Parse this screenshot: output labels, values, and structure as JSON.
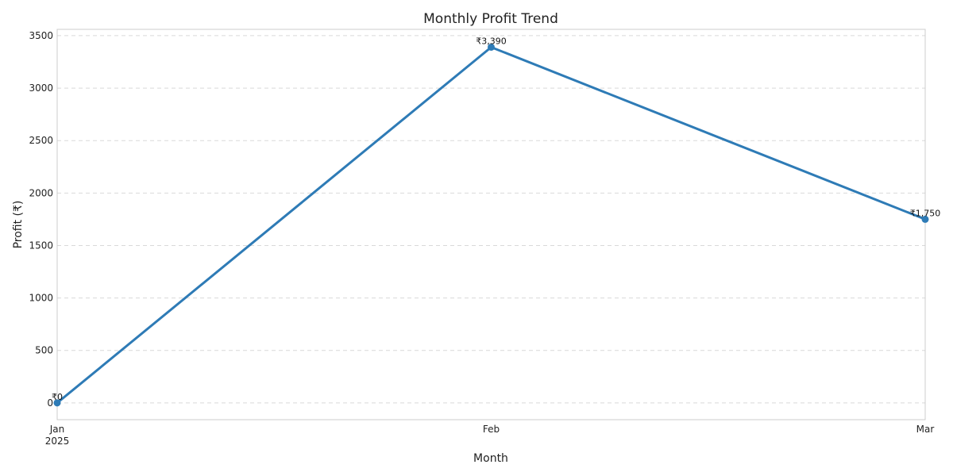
{
  "chart_data": {
    "type": "line",
    "title": "Monthly Profit Trend",
    "xlabel": "Month",
    "ylabel": "Profit (₹)",
    "categories": [
      "Jan",
      "Feb",
      "Mar"
    ],
    "year_label": "2025",
    "series": [
      {
        "values": [
          0,
          3390,
          1750
        ],
        "color": "#2e7bb6"
      }
    ],
    "data_labels": [
      "₹0",
      "₹3,390",
      "₹1,750"
    ],
    "yticks": [
      0,
      500,
      1000,
      1500,
      2000,
      2500,
      3000,
      3500
    ],
    "ylim": [
      -160,
      3560
    ],
    "grid": true,
    "legend": "none"
  }
}
